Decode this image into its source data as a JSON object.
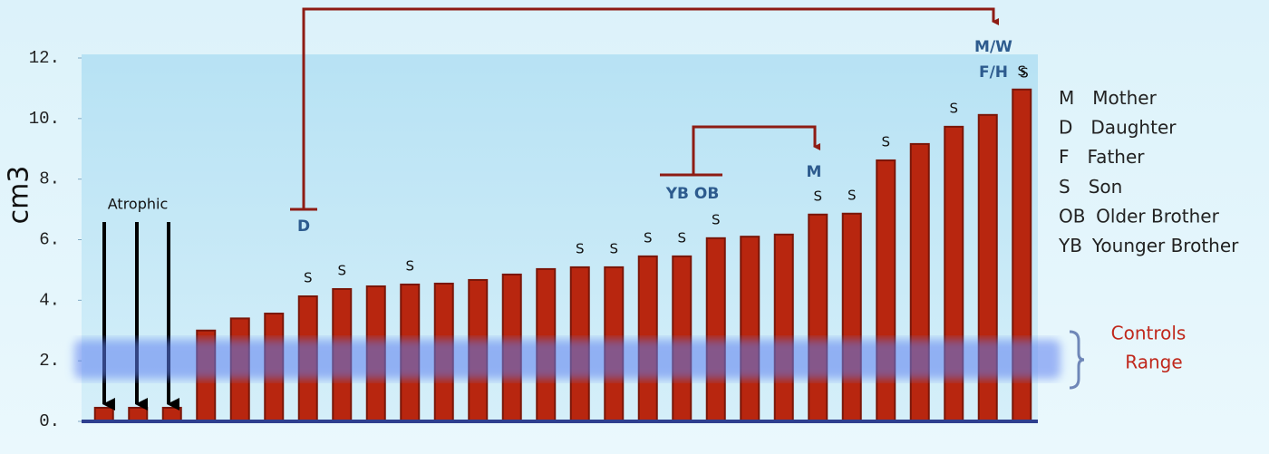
{
  "chart_data": {
    "type": "bar",
    "ylabel": "cm3",
    "values": [
      0.45,
      0.45,
      0.45,
      3.0,
      3.4,
      3.56,
      4.13,
      4.37,
      4.46,
      4.52,
      4.55,
      4.67,
      4.85,
      5.03,
      5.09,
      5.09,
      5.45,
      5.45,
      6.05,
      6.1,
      6.17,
      6.83,
      6.86,
      8.62,
      9.16,
      9.73,
      10.12,
      10.96
    ],
    "bar_labels": [
      null,
      null,
      null,
      null,
      null,
      null,
      "S",
      "S",
      null,
      "S",
      null,
      null,
      null,
      null,
      "S",
      "S",
      "S",
      "S",
      "S",
      null,
      null,
      "S",
      "S",
      "S",
      null,
      "S",
      null,
      "S"
    ],
    "color": "#b8260f",
    "ylim": [
      0,
      12
    ],
    "yticks": [
      {
        "value": 0,
        "label": "0."
      },
      {
        "value": 2,
        "label": "2."
      },
      {
        "value": 4,
        "label": "4."
      },
      {
        "value": 6,
        "label": "6."
      },
      {
        "value": 8,
        "label": "8."
      },
      {
        "value": 10,
        "label": "10."
      },
      {
        "value": 12,
        "label": "12."
      }
    ],
    "controls_range": [
      1.4,
      2.7
    ],
    "controls_label": [
      "Controls",
      "Range"
    ],
    "annotations": {
      "atrophic": "Atrophic",
      "daughter": "D",
      "brothers": "YB OB",
      "mother": "M",
      "mw": "M/W",
      "fh": "F/H",
      "fh_son": "S"
    },
    "legend": [
      {
        "abbr": "M",
        "name": "Mother"
      },
      {
        "abbr": "D",
        "name": "Daughter"
      },
      {
        "abbr": "F",
        "name": "Father"
      },
      {
        "abbr": "S",
        "name": "Son"
      },
      {
        "abbr": "OB",
        "name": "Older Brother"
      },
      {
        "abbr": "YB",
        "name": "Younger Brother"
      }
    ]
  }
}
